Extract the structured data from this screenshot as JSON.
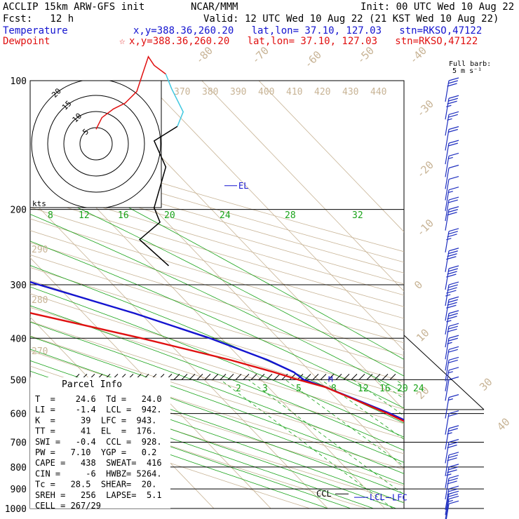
{
  "header": {
    "model": "ACCLIP 15km ARW-GFS init",
    "org": "NCAR/MMM",
    "init": "Init: 00 UTC Wed 10 Aug 22",
    "fcst": "Fcst:   12 h",
    "valid": "Valid: 12 UTC Wed 10 Aug 22 (21 KST Wed 10 Aug 22)",
    "temp_label": "Temperature",
    "temp_info": "x,y=388.36,260.20   lat,lon= 37.10, 127.03   stn=RKSO,47122",
    "dew_label": "Dewpoint",
    "dew_info": "x,y=388.36,260.20   lat,lon= 37.10, 127.03   stn=RKSO,47122",
    "dew_marker": "☆"
  },
  "barb_legend": {
    "line1": "Full barb:",
    "line2": "5 m s⁻¹"
  },
  "parcel_info": {
    "title": "Parcel Info",
    "rows": [
      "T  =    24.6  Td =   24.0",
      "LI =    -1.4  LCL =  942.",
      "K  =     39  LFC =  943.",
      "TT =     41  EL  =  176.",
      "SWI =   -0.4  CCL =  928.",
      "PW =   7.10  YGP =   0.2",
      "CAPE =   438  SWEAT=  416",
      "CIN =     -6  HWBZ= 5264.",
      "Tc =   28.5  SHEAR=  20.",
      "SREH =   256  LAPSE=  5.1",
      "CELL = 267/29"
    ]
  },
  "hodograph": {
    "rings": [
      "5",
      "10",
      "15",
      "20"
    ],
    "units": "kts"
  },
  "colors": {
    "temperature": "#1414d0",
    "dewpoint": "#e01010",
    "dry_adiabat": "#c8b496",
    "isotherm": "#c8b496",
    "mixing_ratio": "#19a319",
    "moist_adiabat": "#19a319",
    "isobar": "#000000"
  },
  "chart_data": {
    "type": "line",
    "title": "",
    "xlabel": "",
    "ylabel": "",
    "y_axis": {
      "scale": "log",
      "ticks": [
        100,
        200,
        300,
        400,
        500,
        600,
        700,
        800,
        900,
        1000
      ]
    },
    "isotherm_labels": [
      "-80",
      "-70",
      "-60",
      "-50",
      "-40",
      "-30",
      "-20",
      "-10",
      "0",
      "10",
      "20",
      "30",
      "40"
    ],
    "theta_labels_top": [
      "370",
      "380",
      "390",
      "400",
      "410",
      "420",
      "430",
      "440"
    ],
    "theta_labels_left": [
      "290",
      "280",
      "270"
    ],
    "mixing_ratio_labels_upper": [
      "8",
      "12",
      "16",
      "20",
      "24",
      "28",
      "32"
    ],
    "mixing_ratio_labels_lower": [
      "2",
      "3",
      "5",
      "8",
      "12",
      "16",
      "20",
      "24"
    ],
    "series": [
      {
        "name": "Temperature",
        "points": [
          [
            100,
            -68
          ],
          [
            110,
            -73
          ],
          [
            125,
            -76.5
          ],
          [
            140,
            -77.5
          ],
          [
            160,
            -76
          ],
          [
            170,
            -75
          ],
          [
            176,
            -74
          ],
          [
            200,
            -64
          ],
          [
            250,
            -46
          ],
          [
            300,
            -33
          ],
          [
            350,
            -21
          ],
          [
            400,
            -12
          ],
          [
            450,
            -5.5
          ],
          [
            480,
            -3
          ],
          [
            500,
            -2.5
          ],
          [
            520,
            0
          ],
          [
            600,
            7
          ],
          [
            700,
            13
          ],
          [
            800,
            18
          ],
          [
            850,
            20.5
          ],
          [
            900,
            22
          ],
          [
            930,
            23.5
          ],
          [
            943,
            24.6
          ],
          [
            960,
            24.5
          ],
          [
            975,
            24.3
          ]
        ]
      },
      {
        "name": "Dewpoint",
        "points": [
          [
            100,
            -85
          ],
          [
            110,
            -87
          ],
          [
            125,
            -91
          ],
          [
            140,
            -90
          ],
          [
            160,
            -87
          ],
          [
            180,
            -86
          ],
          [
            200,
            -81
          ],
          [
            250,
            -69
          ],
          [
            300,
            -54
          ],
          [
            350,
            -39
          ],
          [
            400,
            -24
          ],
          [
            450,
            -12
          ],
          [
            480,
            -6.5
          ],
          [
            500,
            -3.5
          ],
          [
            520,
            0
          ],
          [
            600,
            6.5
          ],
          [
            700,
            12.5
          ],
          [
            800,
            17.5
          ],
          [
            850,
            19.5
          ],
          [
            900,
            21.5
          ],
          [
            930,
            23.5
          ],
          [
            943,
            24
          ],
          [
            960,
            24
          ],
          [
            975,
            23.8
          ]
        ]
      }
    ],
    "annotations": [
      {
        "text": "EL",
        "pressure": 176
      },
      {
        "text": "M",
        "pressure": 500
      },
      {
        "text": "CCL",
        "pressure": 928
      },
      {
        "text": "LCL",
        "pressure": 942
      },
      {
        "text": "LFC",
        "pressure": 943
      }
    ],
    "hodograph_points": [
      [
        0,
        -5
      ],
      [
        2,
        -9
      ],
      [
        6,
        -12
      ],
      [
        10,
        -14
      ],
      [
        14,
        -18
      ],
      [
        16,
        -24
      ],
      [
        18,
        -30
      ],
      [
        20,
        -27
      ],
      [
        24,
        -24
      ],
      [
        26,
        -19
      ],
      [
        28,
        -15
      ],
      [
        30,
        -11
      ],
      [
        28,
        -6
      ],
      [
        20,
        -1
      ],
      [
        24,
        8
      ],
      [
        20,
        22
      ],
      [
        22,
        27
      ],
      [
        15,
        33
      ],
      [
        25,
        42
      ]
    ],
    "wind_barbs": [
      {
        "p": 100,
        "full": 3,
        "half": 0
      },
      {
        "p": 110,
        "full": 3,
        "half": 1
      },
      {
        "p": 120,
        "full": 2,
        "half": 1
      },
      {
        "p": 130,
        "full": 2,
        "half": 0
      },
      {
        "p": 140,
        "full": 2,
        "half": 0
      },
      {
        "p": 150,
        "full": 1,
        "half": 1
      },
      {
        "p": 160,
        "full": 1,
        "half": 0
      },
      {
        "p": 170,
        "full": 1,
        "half": 0
      },
      {
        "p": 180,
        "full": 1,
        "half": 1
      },
      {
        "p": 190,
        "full": 2,
        "half": 0
      },
      {
        "p": 200,
        "full": 3,
        "half": 0
      },
      {
        "p": 225,
        "full": 3,
        "half": 1
      },
      {
        "p": 250,
        "full": 4,
        "half": 0
      },
      {
        "p": 275,
        "full": 4,
        "half": 0
      },
      {
        "p": 300,
        "full": 4,
        "half": 1
      },
      {
        "p": 325,
        "full": 4,
        "half": 0
      },
      {
        "p": 350,
        "full": 3,
        "half": 1
      },
      {
        "p": 375,
        "full": 3,
        "half": 0
      },
      {
        "p": 400,
        "full": 2,
        "half": 1
      },
      {
        "p": 425,
        "full": 2,
        "half": 0
      },
      {
        "p": 450,
        "full": 2,
        "half": 0
      },
      {
        "p": 475,
        "full": 1,
        "half": 1
      },
      {
        "p": 500,
        "full": 1,
        "half": 0
      },
      {
        "p": 550,
        "full": 1,
        "half": 1
      },
      {
        "p": 600,
        "full": 2,
        "half": 0
      },
      {
        "p": 650,
        "full": 2,
        "half": 1
      },
      {
        "p": 700,
        "full": 3,
        "half": 0
      },
      {
        "p": 750,
        "full": 3,
        "half": 0
      },
      {
        "p": 800,
        "full": 3,
        "half": 1
      },
      {
        "p": 850,
        "full": 3,
        "half": 0
      },
      {
        "p": 900,
        "full": 2,
        "half": 1
      },
      {
        "p": 925,
        "full": 2,
        "half": 0
      },
      {
        "p": 950,
        "full": 1,
        "half": 1
      },
      {
        "p": 975,
        "full": 1,
        "half": 0
      }
    ]
  }
}
